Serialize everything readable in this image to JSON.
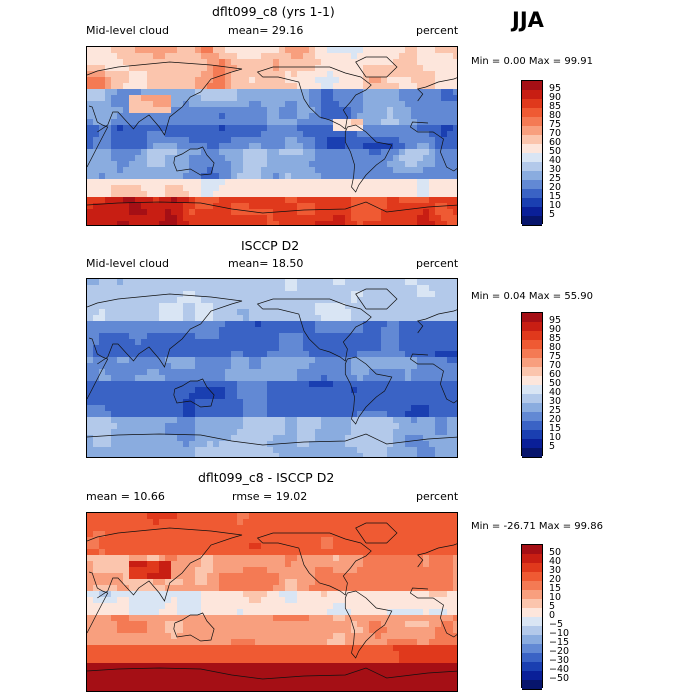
{
  "season": "JJA",
  "chart_data": [
    {
      "type": "heatmap",
      "title": "dflt099_c8 (yrs 1-1)",
      "left_label": "Mid-level cloud",
      "center_label": "mean=  29.16",
      "right_label": "percent",
      "min_label": "Min =    0.00 Max =   99.91",
      "mean": 29.16,
      "min": 0.0,
      "max": 99.91,
      "levels": [
        "95",
        "90",
        "85",
        "80",
        "75",
        "70",
        "60",
        "50",
        "40",
        "30",
        "25",
        "20",
        "15",
        "10",
        "5"
      ],
      "colors": [
        "#a50f15",
        "#c81e13",
        "#e0391c",
        "#ef5a33",
        "#f47a54",
        "#f89f7e",
        "#fbc5ad",
        "#fde6dc",
        "#d9e5f4",
        "#b3c9ea",
        "#8aacdf",
        "#6289d4",
        "#3a63c5",
        "#1a3fb1",
        "#0a1f98",
        "#07156c"
      ],
      "scheme": "model"
    },
    {
      "type": "heatmap",
      "title": "ISCCP D2",
      "left_label": "Mid-level cloud",
      "center_label": "mean=  18.50",
      "right_label": "percent",
      "min_label": "Min =    0.04 Max =   55.90",
      "mean": 18.5,
      "min": 0.04,
      "max": 55.9,
      "levels": [
        "95",
        "90",
        "85",
        "80",
        "75",
        "70",
        "60",
        "50",
        "40",
        "30",
        "25",
        "20",
        "15",
        "10",
        "5"
      ],
      "colors": [
        "#a50f15",
        "#c81e13",
        "#e0391c",
        "#ef5a33",
        "#f47a54",
        "#f89f7e",
        "#fbc5ad",
        "#fde6dc",
        "#d9e5f4",
        "#b3c9ea",
        "#8aacdf",
        "#6289d4",
        "#3a63c5",
        "#1a3fb1",
        "#0a1f98",
        "#07156c"
      ],
      "scheme": "obs"
    },
    {
      "type": "heatmap",
      "title": "dflt099_c8 - ISCCP D2",
      "left_label": "mean =   10.66",
      "center_label": "rmse =   19.02",
      "right_label": "percent",
      "min_label": "Min = -26.71 Max =   99.86",
      "mean": 10.66,
      "rmse": 19.02,
      "min": -26.71,
      "max": 99.86,
      "levels": [
        "50",
        "40",
        "30",
        "20",
        "15",
        "10",
        "5",
        "0",
        "−5",
        "−10",
        "−15",
        "−20",
        "−30",
        "−40",
        "−50"
      ],
      "colors": [
        "#a50f15",
        "#c81e13",
        "#e0391c",
        "#ef5a33",
        "#f47a54",
        "#f89f7e",
        "#fbc5ad",
        "#fde6dc",
        "#d9e5f4",
        "#b3c9ea",
        "#8aacdf",
        "#6289d4",
        "#3a63c5",
        "#1a3fb1",
        "#0a1f98",
        "#07156c"
      ],
      "scheme": "diff"
    }
  ]
}
